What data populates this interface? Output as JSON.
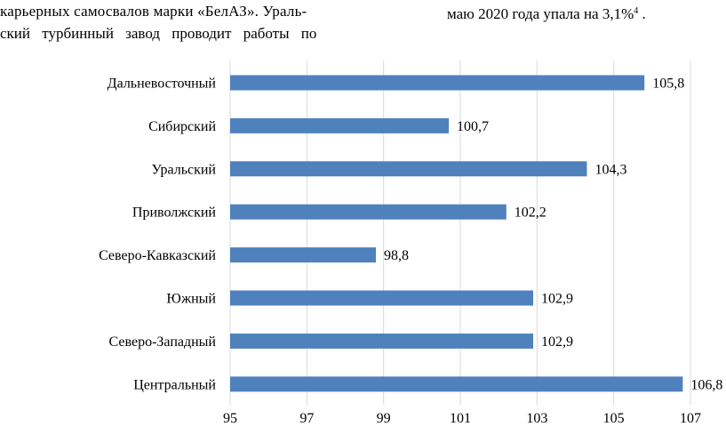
{
  "text": {
    "line1": "карьерных самосвалов марки «БелАЗ». Ураль-",
    "line2": "ский турбинный завод проводит работы по",
    "line3_main": "маю 2020 года упала на 3,1%",
    "line3_sup": "4",
    "line3_end": " ."
  },
  "chart_data": {
    "type": "bar",
    "orientation": "horizontal",
    "categories": [
      "Дальневосточный",
      "Сибирский",
      "Уральский",
      "Приволжский",
      "Северо-Кавказский",
      "Южный",
      "Северо-Западный",
      "Центральный"
    ],
    "values": [
      105.8,
      100.7,
      104.3,
      102.2,
      98.8,
      102.9,
      102.9,
      106.8
    ],
    "value_labels": [
      "105,8",
      "100,7",
      "104,3",
      "102,2",
      "98,8",
      "102,9",
      "102,9",
      "106,8"
    ],
    "xlim": [
      95,
      107
    ],
    "xticks": [
      95,
      97,
      99,
      101,
      103,
      105,
      107
    ],
    "xtick_labels": [
      "95",
      "97",
      "99",
      "101",
      "103",
      "105",
      "107"
    ],
    "grid": "vertical",
    "bar_color": "#4f81bd",
    "grid_color": "#d9d9d9"
  }
}
